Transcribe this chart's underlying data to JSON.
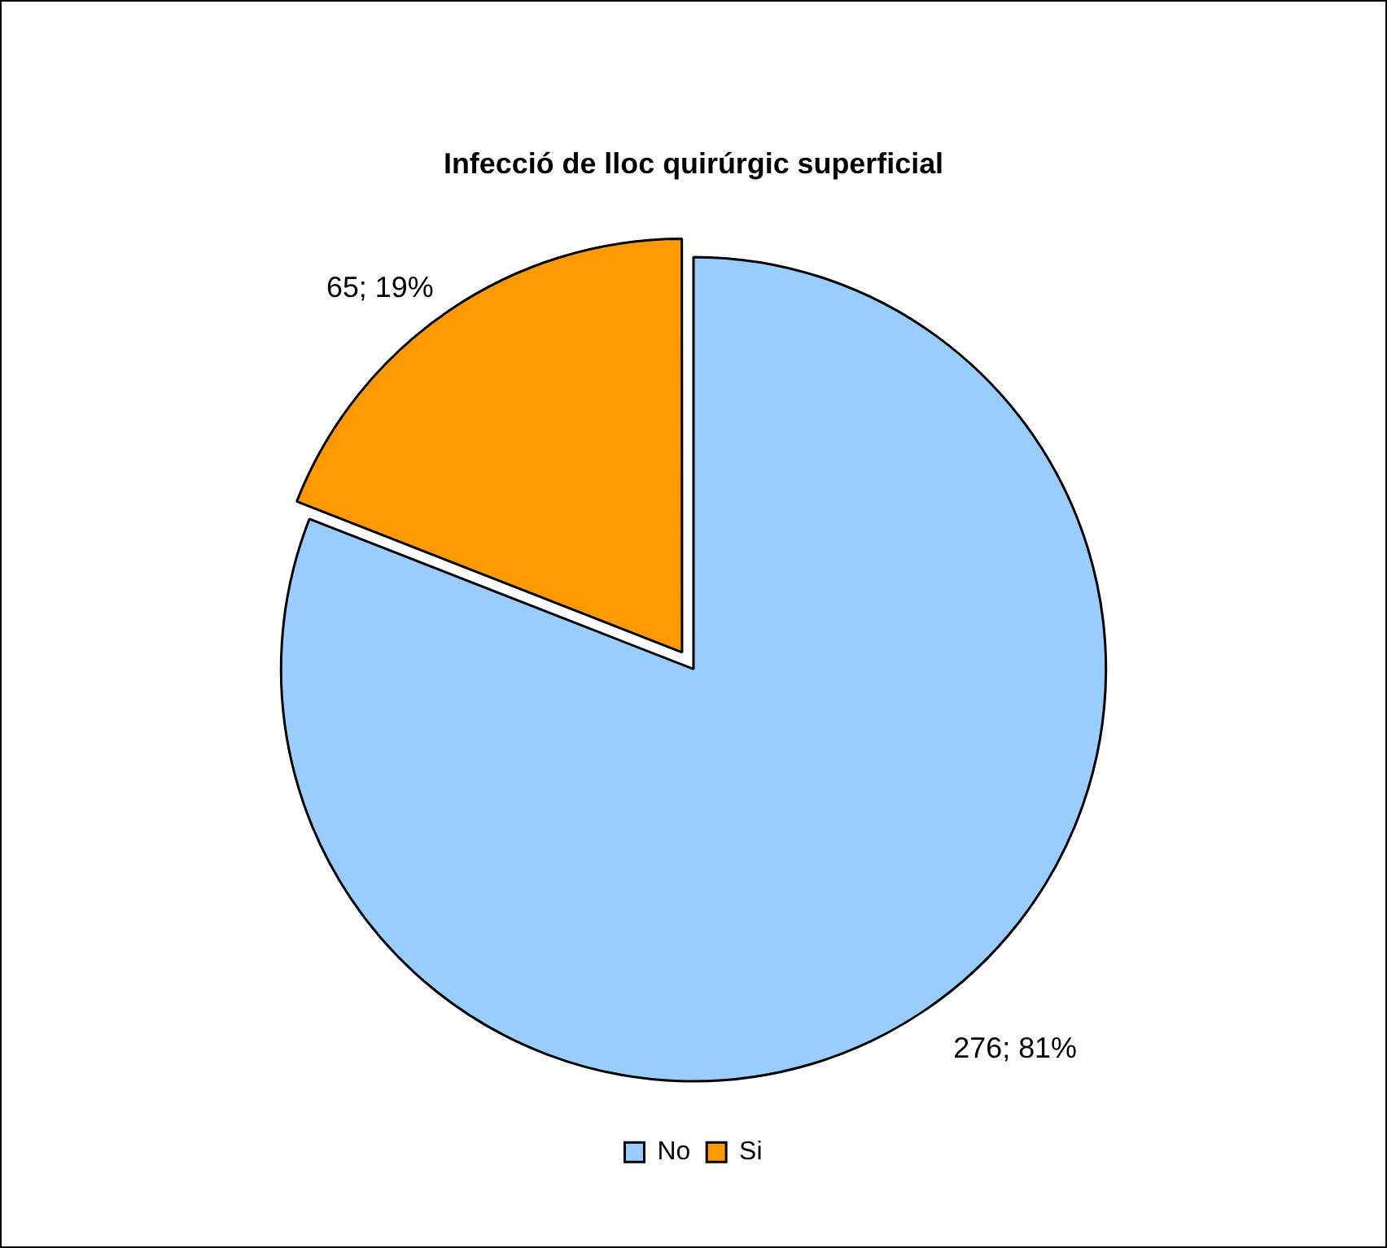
{
  "chart_data": {
    "type": "pie",
    "title": "Infecció de lloc quirúrgic superficial",
    "categories": [
      "No",
      "Si"
    ],
    "values": [
      276,
      65
    ],
    "colors": [
      "#99ccff",
      "#ff9900"
    ],
    "value_labels": [
      "276; 81%",
      "65; 19%"
    ],
    "legend": "bottom"
  }
}
